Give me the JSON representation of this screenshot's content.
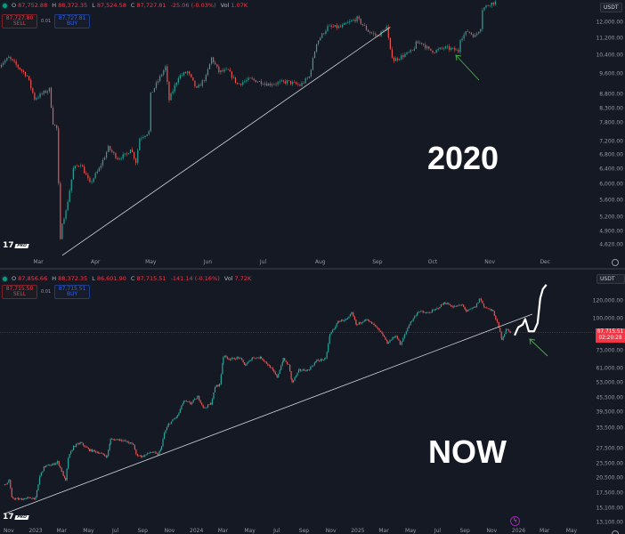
{
  "colors": {
    "up": "#26a69a",
    "down": "#ef5350",
    "background": "#151924",
    "trendline": "#d1d4dc",
    "arrow": "#4caf50",
    "projection": "#ffffff",
    "price_line": "#f23645"
  },
  "top": {
    "legend": {
      "o": "87,752.88",
      "h": "88,372.35",
      "l": "87,524.58",
      "c": "87,727.81",
      "change": "-25.06 (-0.03%)",
      "vol": "1.07K",
      "o_label": "O",
      "h_label": "H",
      "l_label": "L",
      "c_label": "C",
      "vol_label": "Vol"
    },
    "trade": {
      "sell_price": "87,727.80",
      "sell_label": "SELL",
      "spread": "0.01",
      "buy_price": "87,727.81",
      "buy_label": "BUY"
    },
    "currency": "USDT",
    "overlay_text": "2020",
    "logo_pro": "PRO"
  },
  "bottom": {
    "legend": {
      "o": "87,856.66",
      "h": "88,372.35",
      "l": "86,601.90",
      "c": "87,715.51",
      "change": "-141.14 (-0.16%)",
      "vol": "7.72K",
      "o_label": "O",
      "h_label": "H",
      "l_label": "L",
      "c_label": "C",
      "vol_label": "Vol"
    },
    "trade": {
      "sell_price": "87,715.50",
      "sell_label": "SELL",
      "spread": "0.01",
      "buy_price": "87,715.51",
      "buy_label": "BUY"
    },
    "currency": "USDT",
    "overlay_text": "NOW",
    "last_price": "87,715.51",
    "countdown": "02:20:28",
    "logo_pro": "PRO"
  },
  "chart_data": [
    {
      "type": "candlestick",
      "scale": "log",
      "y_ticks": [
        "12,000.00",
        "11,200.00",
        "10,400.00",
        "9,600.00",
        "8,800.00",
        "8,300.00",
        "7,800.00",
        "7,200.00",
        "6,800.00",
        "6,400.00",
        "6,000.00",
        "5,600.00",
        "5,200.00",
        "4,900.00",
        "4,620.00"
      ],
      "x_ticks": [
        "Mar",
        "Apr",
        "May",
        "Jun",
        "Jul",
        "Aug",
        "Sep",
        "Oct",
        "Nov",
        "Dec"
      ],
      "ylim": [
        4450,
        13100
      ],
      "closes": [
        [
          "2020-02-09",
          9990
        ],
        [
          "2020-02-14",
          10300
        ],
        [
          "2020-02-24",
          9530
        ],
        [
          "2020-02-28",
          8650
        ],
        [
          "2020-03-07",
          9000
        ],
        [
          "2020-03-09",
          7800
        ],
        [
          "2020-03-11",
          7600
        ],
        [
          "2020-03-13",
          4700
        ],
        [
          "2020-03-14",
          5100
        ],
        [
          "2020-03-16",
          5330
        ],
        [
          "2020-03-20",
          6400
        ],
        [
          "2020-03-24",
          6550
        ],
        [
          "2020-03-29",
          6000
        ],
        [
          "2020-04-03",
          6400
        ],
        [
          "2020-04-08",
          7000
        ],
        [
          "2020-04-13",
          6700
        ],
        [
          "2020-04-18",
          6800
        ],
        [
          "2020-04-20",
          7000
        ],
        [
          "2020-04-23",
          6600
        ],
        [
          "2020-04-25",
          7300
        ],
        [
          "2020-04-30",
          7500
        ],
        [
          "2020-05-01",
          8800
        ],
        [
          "2020-05-04",
          9200
        ],
        [
          "2020-05-09",
          9900
        ],
        [
          "2020-05-11",
          8600
        ],
        [
          "2020-05-16",
          9500
        ],
        [
          "2020-05-21",
          9700
        ],
        [
          "2020-05-26",
          9000
        ],
        [
          "2020-05-31",
          9500
        ],
        [
          "2020-06-03",
          10300
        ],
        [
          "2020-06-07",
          9700
        ],
        [
          "2020-06-12",
          9750
        ],
        [
          "2020-06-17",
          9200
        ],
        [
          "2020-06-24",
          9400
        ],
        [
          "2020-07-04",
          9200
        ],
        [
          "2020-07-14",
          9300
        ],
        [
          "2020-07-21",
          9150
        ],
        [
          "2020-07-26",
          9500
        ],
        [
          "2020-07-30",
          11000
        ],
        [
          "2020-08-05",
          11750
        ],
        [
          "2020-08-12",
          11750
        ],
        [
          "2020-08-21",
          12200
        ],
        [
          "2020-08-27",
          11550
        ],
        [
          "2020-09-01",
          11300
        ],
        [
          "2020-09-06",
          11750
        ],
        [
          "2020-09-08",
          10600
        ],
        [
          "2020-09-10",
          10200
        ],
        [
          "2020-09-15",
          10400
        ],
        [
          "2020-09-20",
          10600
        ],
        [
          "2020-09-22",
          10950
        ],
        [
          "2020-09-25",
          11000
        ],
        [
          "2020-09-29",
          10650
        ],
        [
          "2020-10-02",
          10600
        ],
        [
          "2020-10-07",
          10750
        ],
        [
          "2020-10-11",
          10700
        ],
        [
          "2020-10-15",
          10600
        ],
        [
          "2020-10-16",
          11200
        ],
        [
          "2020-10-20",
          11550
        ],
        [
          "2020-10-24",
          11300
        ],
        [
          "2020-10-27",
          11750
        ],
        [
          "2020-10-28",
          12700
        ],
        [
          "2020-11-01",
          13000
        ],
        [
          "2020-11-05",
          13100
        ]
      ],
      "trendline": [
        [
          "2020-03-14",
          4415
        ],
        [
          "2020-09-08",
          11750
        ]
      ]
    },
    {
      "type": "candlestick",
      "scale": "log",
      "y_ticks": [
        "120,000.00",
        "100,000.00",
        "73,000.00",
        "61,000.00",
        "53,000.00",
        "45,500.00",
        "39,500.00",
        "33,500.00",
        "27,500.00",
        "23,500.00",
        "20,500.00",
        "17,500.00",
        "15,100.00",
        "13,100.00"
      ],
      "x_ticks": [
        "Nov",
        "2023",
        "Mar",
        "May",
        "Jul",
        "Sep",
        "Nov",
        "2024",
        "Mar",
        "May",
        "Jul",
        "Sep",
        "Nov",
        "2025",
        "Mar",
        "May",
        "Jul",
        "Sep",
        "Nov",
        "2026",
        "Mar",
        "May"
      ],
      "ylim": [
        13000,
        145000
      ],
      "closes": [
        [
          "2022-10-23",
          19000
        ],
        [
          "2022-11-02",
          20000
        ],
        [
          "2022-11-08",
          16700
        ],
        [
          "2022-11-25",
          16500
        ],
        [
          "2022-12-14",
          16700
        ],
        [
          "2023-01-01",
          16700
        ],
        [
          "2023-01-11",
          20900
        ],
        [
          "2023-01-21",
          22900
        ],
        [
          "2023-02-10",
          23400
        ],
        [
          "2023-02-20",
          24000
        ],
        [
          "2023-03-02",
          21700
        ],
        [
          "2023-03-10",
          19800
        ],
        [
          "2023-03-16",
          25000
        ],
        [
          "2023-03-28",
          28000
        ],
        [
          "2023-04-13",
          29000
        ],
        [
          "2023-05-03",
          27000
        ],
        [
          "2023-05-23",
          26400
        ],
        [
          "2023-06-12",
          25300
        ],
        [
          "2023-06-20",
          30000
        ],
        [
          "2023-07-12",
          30000
        ],
        [
          "2023-08-01",
          29000
        ],
        [
          "2023-08-11",
          28500
        ],
        [
          "2023-08-17",
          25800
        ],
        [
          "2023-08-31",
          25300
        ],
        [
          "2023-09-20",
          26500
        ],
        [
          "2023-10-06",
          25800
        ],
        [
          "2023-10-14",
          28000
        ],
        [
          "2023-10-20",
          32000
        ],
        [
          "2023-10-30",
          35000
        ],
        [
          "2023-11-19",
          38000
        ],
        [
          "2023-12-03",
          44000
        ],
        [
          "2023-12-19",
          43000
        ],
        [
          "2024-01-04",
          46000
        ],
        [
          "2024-01-18",
          41000
        ],
        [
          "2024-02-03",
          43000
        ],
        [
          "2024-02-13",
          51000
        ],
        [
          "2024-02-23",
          52000
        ],
        [
          "2024-03-02",
          69000
        ],
        [
          "2024-03-18",
          67000
        ],
        [
          "2024-04-07",
          68000
        ],
        [
          "2024-04-21",
          63000
        ],
        [
          "2024-05-07",
          68000
        ],
        [
          "2024-05-27",
          68000
        ],
        [
          "2024-06-16",
          62000
        ],
        [
          "2024-07-02",
          56000
        ],
        [
          "2024-07-16",
          67000
        ],
        [
          "2024-07-28",
          63000
        ],
        [
          "2024-08-05",
          53000
        ],
        [
          "2024-08-21",
          60000
        ],
        [
          "2024-09-10",
          60000
        ],
        [
          "2024-09-30",
          66000
        ],
        [
          "2024-10-20",
          67000
        ],
        [
          "2024-10-30",
          86000
        ],
        [
          "2024-11-19",
          98000
        ],
        [
          "2024-12-09",
          100000
        ],
        [
          "2024-12-19",
          106000
        ],
        [
          "2024-12-29",
          94000
        ],
        [
          "2025-01-18",
          100000
        ],
        [
          "2025-02-07",
          94000
        ],
        [
          "2025-02-27",
          85000
        ],
        [
          "2025-03-09",
          79000
        ],
        [
          "2025-03-29",
          85000
        ],
        [
          "2025-04-08",
          77000
        ],
        [
          "2025-04-18",
          86000
        ],
        [
          "2025-04-28",
          95000
        ],
        [
          "2025-05-18",
          108000
        ],
        [
          "2025-06-07",
          106000
        ],
        [
          "2025-06-27",
          110000
        ],
        [
          "2025-07-17",
          118000
        ],
        [
          "2025-08-06",
          113000
        ],
        [
          "2025-08-26",
          115000
        ],
        [
          "2025-09-05",
          108000
        ],
        [
          "2025-09-25",
          113000
        ],
        [
          "2025-10-05",
          123000
        ],
        [
          "2025-10-15",
          113000
        ],
        [
          "2025-11-04",
          108000
        ],
        [
          "2025-11-14",
          96000
        ],
        [
          "2025-11-24",
          82000
        ],
        [
          "2025-12-04",
          90000
        ],
        [
          "2025-12-14",
          87716
        ]
      ],
      "projection": [
        [
          "2025-12-23",
          85000
        ],
        [
          "2025-12-31",
          92000
        ],
        [
          "2026-01-10",
          94500
        ],
        [
          "2026-01-16",
          100000
        ],
        [
          "2026-01-24",
          88500
        ],
        [
          "2026-02-05",
          88500
        ],
        [
          "2026-02-13",
          96000
        ],
        [
          "2026-02-19",
          123000
        ],
        [
          "2026-02-25",
          135000
        ],
        [
          "2026-03-05",
          141000
        ]
      ],
      "trendline": [
        [
          "2022-10-23",
          14300
        ],
        [
          "2026-02-01",
          105000
        ]
      ],
      "price_line": 87715.51
    }
  ]
}
